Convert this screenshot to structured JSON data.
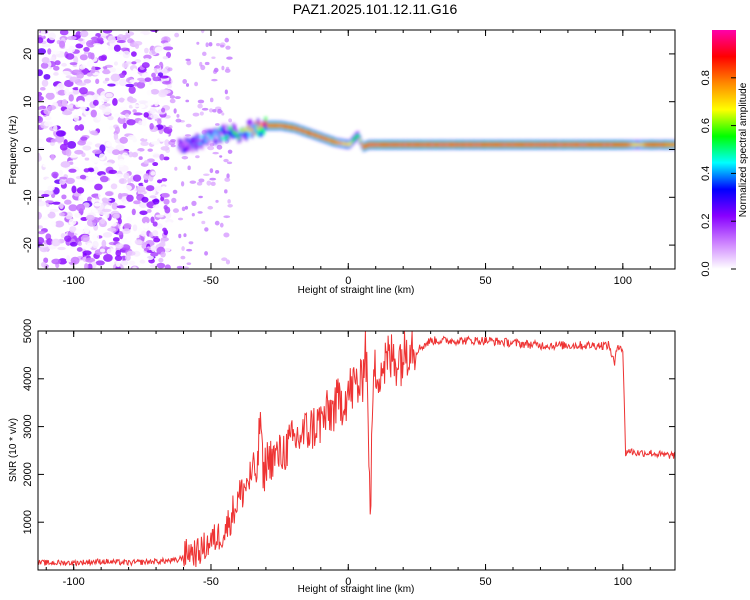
{
  "title": "PAZ1.2025.101.12.11.G16",
  "chart_data": [
    {
      "type": "heatmap",
      "xlabel": "Height of straight line (km)",
      "ylabel": "Frequency (Hz)",
      "xlim": [
        -113,
        119
      ],
      "ylim": [
        -25,
        25
      ],
      "xticks": [
        "-100",
        "-50",
        "0",
        "50",
        "100"
      ],
      "yticks": [
        "-20",
        "-10",
        "0",
        "10",
        "20"
      ],
      "colorbar": {
        "label": "Normalized spectral amplitude",
        "range": [
          0,
          1
        ],
        "ticks": [
          "0.0",
          "0.2",
          "0.4",
          "0.6",
          "0.8"
        ],
        "colors": [
          "#ffffff",
          "#cc80ff",
          "#8800ff",
          "#0000ff",
          "#00ffff",
          "#00ff00",
          "#ffff00",
          "#ff8800",
          "#ff0000",
          "#ff00aa"
        ]
      },
      "ridge": {
        "x": [
          -62,
          -55,
          -48,
          -40,
          -35,
          -30,
          -25,
          -20,
          -15,
          -10,
          -5,
          0,
          3,
          5,
          7,
          10,
          20,
          40,
          60,
          80,
          95,
          100,
          105,
          110,
          119
        ],
        "frequency": [
          0.5,
          1.5,
          3.0,
          3.5,
          4.5,
          5.0,
          5.0,
          4.5,
          3.5,
          2.5,
          1.5,
          1.0,
          3.0,
          0.5,
          1.0,
          1.0,
          1.0,
          1.0,
          1.0,
          1.0,
          1.0,
          1.0,
          1.0,
          1.0,
          1.0
        ],
        "amplitude": [
          0.3,
          0.4,
          0.45,
          0.6,
          0.75,
          0.85,
          0.85,
          0.85,
          0.85,
          0.85,
          0.8,
          0.7,
          0.5,
          0.9,
          0.95,
          0.95,
          0.95,
          0.95,
          0.95,
          0.95,
          0.95,
          0.9,
          0.7,
          0.9,
          0.8
        ]
      },
      "noise_region_x": [
        -113,
        -65
      ]
    },
    {
      "type": "line",
      "xlabel": "Height of straight line (km)",
      "ylabel": "SNR (10 * v/v)",
      "xlim": [
        -113,
        119
      ],
      "ylim": [
        0,
        5000
      ],
      "xticks": [
        "-100",
        "-50",
        "0",
        "50",
        "100"
      ],
      "yticks": [
        "1000",
        "2000",
        "3000",
        "4000",
        "5000"
      ],
      "color": "#ee3333",
      "series": [
        {
          "x": [
            -113,
            -100,
            -90,
            -80,
            -70,
            -62,
            -58,
            -55,
            -50,
            -45,
            -40,
            -35,
            -33,
            -32,
            -31,
            -30,
            -25,
            -20,
            -15,
            -10,
            -5,
            0,
            3,
            5,
            6,
            7,
            8,
            9,
            10,
            13,
            15,
            20,
            23,
            25,
            30,
            40,
            50,
            60,
            70,
            80,
            90,
            95,
            97,
            98,
            99,
            100,
            101,
            102,
            105,
            110,
            115,
            119
          ],
          "y": [
            150,
            150,
            180,
            150,
            180,
            200,
            400,
            350,
            600,
            800,
            1500,
            2000,
            2100,
            3400,
            1800,
            2300,
            2400,
            2700,
            2900,
            3100,
            3400,
            3700,
            3900,
            3800,
            4900,
            4000,
            1000,
            3800,
            4200,
            4300,
            4400,
            4500,
            4900,
            4600,
            4800,
            4800,
            4800,
            4750,
            4700,
            4700,
            4700,
            4700,
            4300,
            4700,
            4700,
            4600,
            2450,
            2500,
            2450,
            2450,
            2400,
            2400
          ]
        }
      ]
    }
  ]
}
